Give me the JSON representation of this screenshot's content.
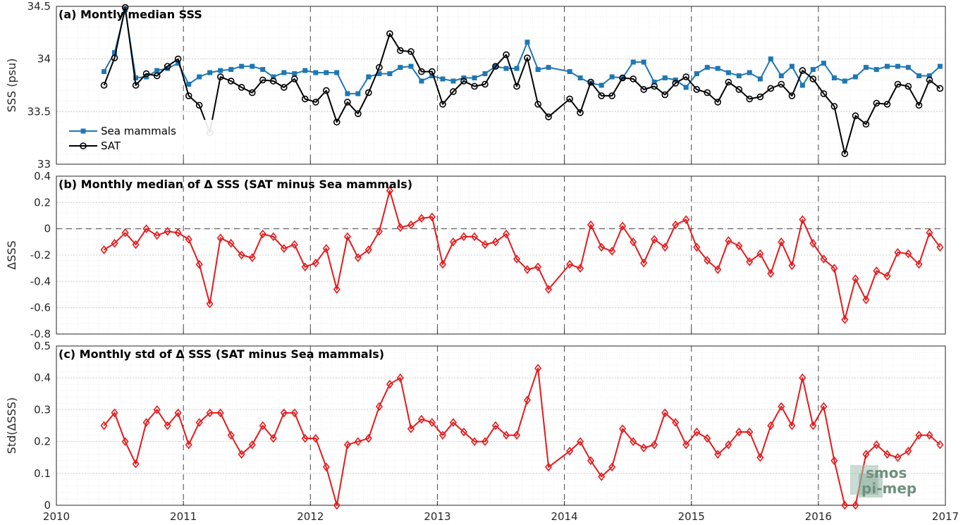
{
  "chart_data": [
    {
      "type": "line",
      "title": "(a) Montly median SSS",
      "xlabel": "",
      "ylabel": "SSS (psu)",
      "xlim": [
        2010,
        2017
      ],
      "ylim": [
        33,
        34.5
      ],
      "yticks": [
        "33",
        "33.5",
        "34",
        "34.5"
      ],
      "grid": true,
      "legend_position": "middle-left",
      "series": [
        {
          "name": "Sea mammals",
          "color": "#1f77b4",
          "marker": "square",
          "x": [
            2010.375,
            2010.458,
            2010.542,
            2010.625,
            2010.708,
            2010.792,
            2010.875,
            2010.958,
            2011.042,
            2011.125,
            2011.208,
            2011.292,
            2011.375,
            2011.458,
            2011.542,
            2011.625,
            2011.708,
            2011.792,
            2011.875,
            2011.958,
            2012.042,
            2012.125,
            2012.208,
            2012.292,
            2012.375,
            2012.458,
            2012.542,
            2012.625,
            2012.708,
            2012.792,
            2012.875,
            2012.958,
            2013.042,
            2013.125,
            2013.208,
            2013.292,
            2013.375,
            2013.458,
            2013.542,
            2013.625,
            2013.708,
            2013.792,
            2013.875,
            2014.042,
            2014.125,
            2014.208,
            2014.292,
            2014.375,
            2014.458,
            2014.542,
            2014.625,
            2014.708,
            2014.792,
            2014.875,
            2014.958,
            2015.042,
            2015.125,
            2015.208,
            2015.292,
            2015.375,
            2015.458,
            2015.542,
            2015.625,
            2015.708,
            2015.792,
            2015.875,
            2015.958,
            2016.042,
            2016.125,
            2016.208,
            2016.292,
            2016.375,
            2016.458,
            2016.542,
            2016.625,
            2016.708,
            2016.792,
            2016.875,
            2016.958
          ],
          "values": [
            33.88,
            34.06,
            34.47,
            33.82,
            33.83,
            33.89,
            33.91,
            33.96,
            33.76,
            33.83,
            33.87,
            33.89,
            33.9,
            33.93,
            33.93,
            33.9,
            33.83,
            33.87,
            33.86,
            33.89,
            33.87,
            33.87,
            33.87,
            33.67,
            33.67,
            33.83,
            33.86,
            33.86,
            33.92,
            33.93,
            33.79,
            33.84,
            33.81,
            33.79,
            33.82,
            33.82,
            33.86,
            33.93,
            33.91,
            33.91,
            34.16,
            33.9,
            33.92,
            33.88,
            33.82,
            33.77,
            33.75,
            33.83,
            33.82,
            33.97,
            33.97,
            33.78,
            33.82,
            33.8,
            33.73,
            33.86,
            33.92,
            33.91,
            33.87,
            33.84,
            33.87,
            33.81,
            34.0,
            33.84,
            33.93,
            33.75,
            33.9,
            33.96,
            33.82,
            33.79,
            33.83,
            33.92,
            33.9,
            33.93,
            33.93,
            33.92,
            33.84,
            33.84,
            33.93
          ]
        },
        {
          "name": "SAT",
          "color": "#000000",
          "marker": "circle",
          "x": [
            2010.375,
            2010.458,
            2010.542,
            2010.625,
            2010.708,
            2010.792,
            2010.875,
            2010.958,
            2011.042,
            2011.125,
            2011.208,
            2011.292,
            2011.375,
            2011.458,
            2011.542,
            2011.625,
            2011.708,
            2011.792,
            2011.875,
            2011.958,
            2012.042,
            2012.125,
            2012.208,
            2012.292,
            2012.375,
            2012.458,
            2012.542,
            2012.625,
            2012.708,
            2012.792,
            2012.875,
            2012.958,
            2013.042,
            2013.125,
            2013.208,
            2013.292,
            2013.375,
            2013.458,
            2013.542,
            2013.625,
            2013.708,
            2013.792,
            2013.875,
            2014.042,
            2014.125,
            2014.208,
            2014.292,
            2014.375,
            2014.458,
            2014.542,
            2014.625,
            2014.708,
            2014.792,
            2014.875,
            2014.958,
            2015.042,
            2015.125,
            2015.208,
            2015.292,
            2015.375,
            2015.458,
            2015.542,
            2015.625,
            2015.708,
            2015.792,
            2015.875,
            2015.958,
            2016.042,
            2016.125,
            2016.208,
            2016.292,
            2016.375,
            2016.458,
            2016.542,
            2016.625,
            2016.708,
            2016.792,
            2016.875,
            2016.958
          ],
          "values": [
            33.75,
            34.01,
            34.49,
            33.75,
            33.86,
            33.84,
            33.93,
            34.0,
            33.65,
            33.56,
            33.3,
            33.83,
            33.79,
            33.73,
            33.68,
            33.8,
            33.79,
            33.73,
            33.81,
            33.62,
            33.59,
            33.7,
            33.4,
            33.59,
            33.48,
            33.68,
            33.92,
            34.24,
            34.08,
            34.07,
            33.88,
            33.88,
            33.57,
            33.69,
            33.79,
            33.74,
            33.76,
            33.93,
            34.04,
            33.74,
            34.01,
            33.57,
            33.45,
            33.62,
            33.49,
            33.78,
            33.65,
            33.65,
            33.82,
            33.81,
            33.71,
            33.74,
            33.66,
            33.77,
            33.83,
            33.71,
            33.68,
            33.59,
            33.78,
            33.71,
            33.62,
            33.64,
            33.72,
            33.76,
            33.65,
            33.89,
            33.81,
            33.67,
            33.55,
            33.1,
            33.46,
            33.38,
            33.58,
            33.57,
            33.76,
            33.74,
            33.56,
            33.8,
            33.72
          ]
        }
      ]
    },
    {
      "type": "line",
      "title": "(b) Monthly median of Δ SSS (SAT minus Sea mammals)",
      "xlabel": "",
      "ylabel": "ΔSSS",
      "xlim": [
        2010,
        2017
      ],
      "ylim": [
        -0.8,
        0.4
      ],
      "yticks": [
        "-0.8",
        "-0.6",
        "-0.4",
        "-0.2",
        "0",
        "0.2",
        "0.4"
      ],
      "grid": true,
      "series": [
        {
          "color": "#e41a1c",
          "marker": "diamond",
          "x": [
            2010.375,
            2010.458,
            2010.542,
            2010.625,
            2010.708,
            2010.792,
            2010.875,
            2010.958,
            2011.042,
            2011.125,
            2011.208,
            2011.292,
            2011.375,
            2011.458,
            2011.542,
            2011.625,
            2011.708,
            2011.792,
            2011.875,
            2011.958,
            2012.042,
            2012.125,
            2012.208,
            2012.292,
            2012.375,
            2012.458,
            2012.542,
            2012.625,
            2012.708,
            2012.792,
            2012.875,
            2012.958,
            2013.042,
            2013.125,
            2013.208,
            2013.292,
            2013.375,
            2013.458,
            2013.542,
            2013.625,
            2013.708,
            2013.792,
            2013.875,
            2014.042,
            2014.125,
            2014.208,
            2014.292,
            2014.375,
            2014.458,
            2014.542,
            2014.625,
            2014.708,
            2014.792,
            2014.875,
            2014.958,
            2015.042,
            2015.125,
            2015.208,
            2015.292,
            2015.375,
            2015.458,
            2015.542,
            2015.625,
            2015.708,
            2015.792,
            2015.875,
            2015.958,
            2016.042,
            2016.125,
            2016.208,
            2016.292,
            2016.375,
            2016.458,
            2016.542,
            2016.625,
            2016.708,
            2016.792,
            2016.875,
            2016.958
          ],
          "values": [
            -0.16,
            -0.11,
            -0.03,
            -0.12,
            0.0,
            -0.05,
            -0.02,
            -0.03,
            -0.08,
            -0.27,
            -0.57,
            -0.07,
            -0.11,
            -0.2,
            -0.22,
            -0.04,
            -0.06,
            -0.15,
            -0.12,
            -0.29,
            -0.26,
            -0.15,
            -0.46,
            -0.06,
            -0.22,
            -0.16,
            -0.02,
            0.29,
            0.01,
            0.03,
            0.08,
            0.09,
            -0.27,
            -0.1,
            -0.06,
            -0.06,
            -0.12,
            -0.1,
            -0.04,
            -0.23,
            -0.31,
            -0.29,
            -0.46,
            -0.27,
            -0.3,
            0.03,
            -0.14,
            -0.17,
            0.02,
            -0.1,
            -0.26,
            -0.08,
            -0.14,
            0.03,
            0.07,
            -0.14,
            -0.24,
            -0.31,
            -0.09,
            -0.13,
            -0.25,
            -0.19,
            -0.34,
            -0.1,
            -0.28,
            0.07,
            -0.11,
            -0.23,
            -0.3,
            -0.69,
            -0.38,
            -0.54,
            -0.32,
            -0.36,
            -0.18,
            -0.19,
            -0.27,
            -0.03,
            -0.14
          ]
        }
      ]
    },
    {
      "type": "line",
      "title": "(c) Monthly std of Δ SSS (SAT minus Sea mammals)",
      "xlabel": "",
      "ylabel": "Std(ΔSSS)",
      "xlim": [
        2010,
        2017
      ],
      "ylim": [
        0,
        0.5
      ],
      "xticks": [
        "2010",
        "2011",
        "2012",
        "2013",
        "2014",
        "2015",
        "2016",
        "2017"
      ],
      "yticks": [
        "0",
        "0.1",
        "0.2",
        "0.3",
        "0.4",
        "0.5"
      ],
      "grid": true,
      "series": [
        {
          "color": "#e41a1c",
          "marker": "diamond",
          "x": [
            2010.375,
            2010.458,
            2010.542,
            2010.625,
            2010.708,
            2010.792,
            2010.875,
            2010.958,
            2011.042,
            2011.125,
            2011.208,
            2011.292,
            2011.375,
            2011.458,
            2011.542,
            2011.625,
            2011.708,
            2011.792,
            2011.875,
            2011.958,
            2012.042,
            2012.125,
            2012.208,
            2012.292,
            2012.375,
            2012.458,
            2012.542,
            2012.625,
            2012.708,
            2012.792,
            2012.875,
            2012.958,
            2013.042,
            2013.125,
            2013.208,
            2013.292,
            2013.375,
            2013.458,
            2013.542,
            2013.625,
            2013.708,
            2013.792,
            2013.875,
            2014.042,
            2014.125,
            2014.208,
            2014.292,
            2014.375,
            2014.458,
            2014.542,
            2014.625,
            2014.708,
            2014.792,
            2014.875,
            2014.958,
            2015.042,
            2015.125,
            2015.208,
            2015.292,
            2015.375,
            2015.458,
            2015.542,
            2015.625,
            2015.708,
            2015.792,
            2015.875,
            2015.958,
            2016.042,
            2016.125,
            2016.208,
            2016.292,
            2016.375,
            2016.458,
            2016.542,
            2016.625,
            2016.708,
            2016.792,
            2016.875,
            2016.958
          ],
          "values": [
            0.25,
            0.29,
            0.2,
            0.13,
            0.26,
            0.3,
            0.25,
            0.29,
            0.19,
            0.26,
            0.29,
            0.29,
            0.22,
            0.16,
            0.19,
            0.25,
            0.21,
            0.29,
            0.29,
            0.21,
            0.21,
            0.12,
            0.0,
            0.19,
            0.2,
            0.21,
            0.31,
            0.38,
            0.4,
            0.24,
            0.27,
            0.26,
            0.22,
            0.26,
            0.23,
            0.2,
            0.2,
            0.25,
            0.22,
            0.22,
            0.33,
            0.43,
            0.12,
            0.17,
            0.2,
            0.14,
            0.09,
            0.12,
            0.24,
            0.2,
            0.18,
            0.19,
            0.29,
            0.26,
            0.19,
            0.23,
            0.21,
            0.16,
            0.19,
            0.23,
            0.23,
            0.15,
            0.25,
            0.31,
            0.25,
            0.4,
            0.25,
            0.31,
            0.14,
            0.0,
            0.0,
            0.16,
            0.19,
            0.16,
            0.15,
            0.17,
            0.22,
            0.22,
            0.19
          ]
        }
      ]
    }
  ],
  "watermark": {
    "line1": "smos",
    "line2": "pi-mep",
    "color": "#6f8f7d"
  }
}
